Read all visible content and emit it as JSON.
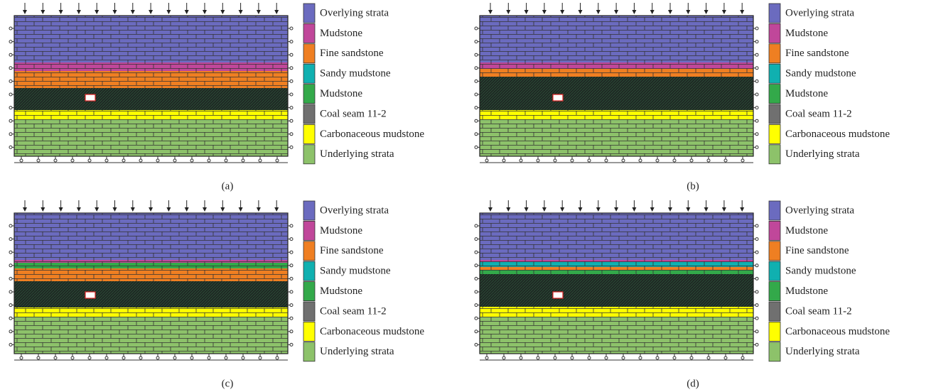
{
  "panels": [
    {
      "caption": "(a)",
      "legend": [
        {
          "label": "Overlying strata",
          "color": "#6b6bbf"
        },
        {
          "label": "Mudstone",
          "color": "#c0479a"
        },
        {
          "label": "Fine sandstone",
          "color": "#ef7f22"
        },
        {
          "label": "Sandy mudstone",
          "color": "#10b0b0"
        },
        {
          "label": "Mudstone",
          "color": "#33a94a"
        },
        {
          "label": "Coal seam 11-2",
          "color": "#707070"
        },
        {
          "label": "Carbonaceous mudstone",
          "color": "#ffff00"
        },
        {
          "label": "Underlying strata",
          "color": "#8dc26a"
        }
      ]
    },
    {
      "caption": "(b)",
      "legend": [
        {
          "label": "Overlying strata",
          "color": "#6b6bbf"
        },
        {
          "label": "Mudstone",
          "color": "#c0479a"
        },
        {
          "label": "Fine sandstone",
          "color": "#ef7f22"
        },
        {
          "label": "Sandy mudstone",
          "color": "#10b0b0"
        },
        {
          "label": "Mudstone",
          "color": "#33a94a"
        },
        {
          "label": "Coal seam 11-2",
          "color": "#707070"
        },
        {
          "label": "Carbonaceous mudstone",
          "color": "#ffff00"
        },
        {
          "label": "Underlying strata",
          "color": "#8dc26a"
        }
      ]
    },
    {
      "caption": "(c)",
      "legend": [
        {
          "label": "Overlying strata",
          "color": "#6b6bbf"
        },
        {
          "label": "Mudstone",
          "color": "#c0479a"
        },
        {
          "label": "Fine sandstone",
          "color": "#ef7f22"
        },
        {
          "label": "Sandy mudstone",
          "color": "#10b0b0"
        },
        {
          "label": "Mudstone",
          "color": "#33a94a"
        },
        {
          "label": "Coal seam 11-2",
          "color": "#707070"
        },
        {
          "label": "Carbonaceous mudstone",
          "color": "#ffff00"
        },
        {
          "label": "Underlying strata",
          "color": "#8dc26a"
        }
      ]
    },
    {
      "caption": "(d)",
      "legend": [
        {
          "label": "Overlying strata",
          "color": "#6b6bbf"
        },
        {
          "label": "Mudstone",
          "color": "#c0479a"
        },
        {
          "label": "Fine sandstone",
          "color": "#ef7f22"
        },
        {
          "label": "Sandy mudstone",
          "color": "#10b0b0"
        },
        {
          "label": "Mudstone",
          "color": "#33a94a"
        },
        {
          "label": "Coal seam 11-2",
          "color": "#707070"
        },
        {
          "label": "Carbonaceous mudstone",
          "color": "#ffff00"
        },
        {
          "label": "Underlying strata",
          "color": "#8dc26a"
        }
      ]
    }
  ]
}
